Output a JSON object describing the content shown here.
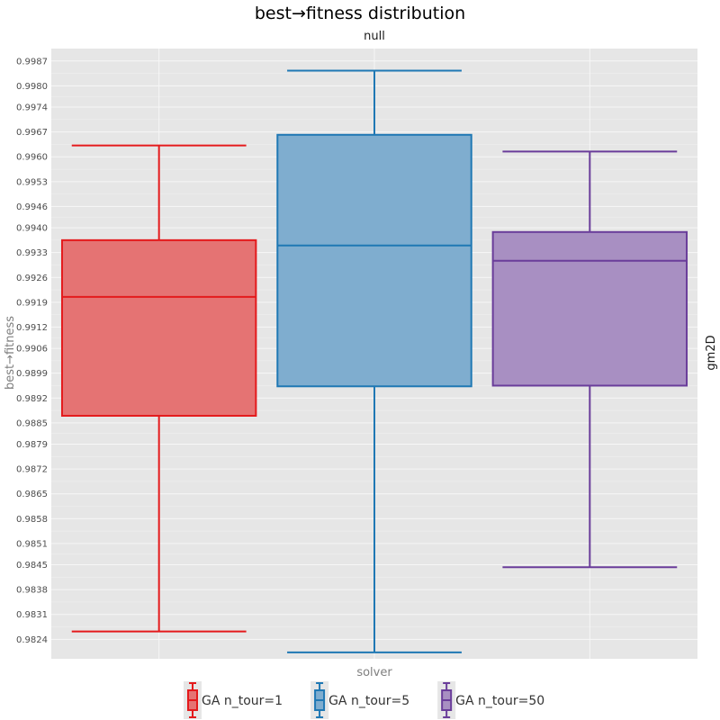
{
  "chart_data": {
    "type": "box",
    "title": "best→fitness distribution",
    "subtitle": "null",
    "xlabel": "solver",
    "ylabel": "best→fitness",
    "facet_label": "gm2D",
    "ylim": [
      0.98185,
      0.99905
    ],
    "yticks": [
      "0.9824",
      "0.9831",
      "0.9838",
      "0.9845",
      "0.9851",
      "0.9858",
      "0.9865",
      "0.9872",
      "0.9879",
      "0.9885",
      "0.9892",
      "0.9899",
      "0.9906",
      "0.9912",
      "0.9919",
      "0.9926",
      "0.9933",
      "0.9940",
      "0.9946",
      "0.9953",
      "0.9960",
      "0.9967",
      "0.9974",
      "0.9980",
      "0.9987"
    ],
    "grid": true,
    "legend_position": "bottom",
    "series": [
      {
        "name": "GA n_tour=1",
        "color": "#e41a1c",
        "fill": "#e57373",
        "min": 0.98262,
        "q1": 0.9887,
        "median": 0.99205,
        "q3": 0.99365,
        "max": 0.99632
      },
      {
        "name": "GA n_tour=5",
        "color": "#1f78b4",
        "fill": "#7fadcf",
        "min": 0.98203,
        "q1": 0.98953,
        "median": 0.9935,
        "q3": 0.99662,
        "max": 0.99843
      },
      {
        "name": "GA n_tour=50",
        "color": "#6a3d9a",
        "fill": "#a88fc2",
        "min": 0.98443,
        "q1": 0.98955,
        "median": 0.99307,
        "q3": 0.99388,
        "max": 0.99615
      }
    ]
  }
}
